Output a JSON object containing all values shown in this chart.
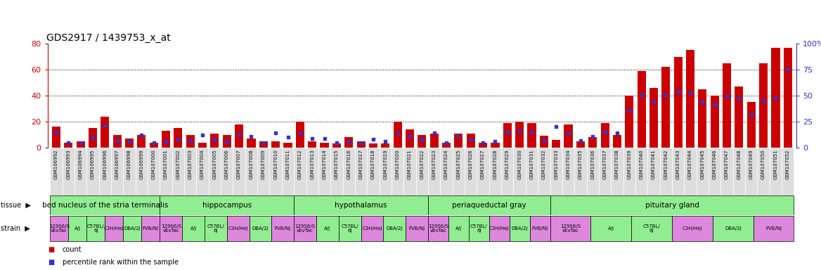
{
  "title": "GDS2917 / 1439753_x_at",
  "left_ylim": [
    0,
    80
  ],
  "right_ylim": [
    0,
    100
  ],
  "left_yticks": [
    0,
    20,
    40,
    60,
    80
  ],
  "right_yticks": [
    0,
    25,
    50,
    75,
    100
  ],
  "right_yticklabels": [
    "0",
    "25",
    "50",
    "75",
    "100%"
  ],
  "bar_color": "#cc0000",
  "dot_color": "#3333cc",
  "samples": [
    "GSM106992",
    "GSM106993",
    "GSM106994",
    "GSM106995",
    "GSM106996",
    "GSM106997",
    "GSM106998",
    "GSM106999",
    "GSM107000",
    "GSM107001",
    "GSM107002",
    "GSM107003",
    "GSM107004",
    "GSM107005",
    "GSM107006",
    "GSM107007",
    "GSM107008",
    "GSM107009",
    "GSM107010",
    "GSM107011",
    "GSM107012",
    "GSM107013",
    "GSM107014",
    "GSM107015",
    "GSM107016",
    "GSM107017",
    "GSM107018",
    "GSM107019",
    "GSM107020",
    "GSM107021",
    "GSM107022",
    "GSM107023",
    "GSM107024",
    "GSM107025",
    "GSM107026",
    "GSM107027",
    "GSM107028",
    "GSM107029",
    "GSM107030",
    "GSM107031",
    "GSM107032",
    "GSM107033",
    "GSM107034",
    "GSM107035",
    "GSM107036",
    "GSM107037",
    "GSM107038",
    "GSM107039",
    "GSM107040",
    "GSM107041",
    "GSM107042",
    "GSM107043",
    "GSM107044",
    "GSM107045",
    "GSM107046",
    "GSM107047",
    "GSM107048",
    "GSM107049",
    "GSM107050",
    "GSM107051",
    "GSM107052"
  ],
  "counts": [
    16,
    4,
    5,
    15,
    24,
    10,
    7,
    10,
    4,
    13,
    15,
    10,
    4,
    11,
    10,
    18,
    7,
    5,
    5,
    4,
    20,
    5,
    4,
    3,
    8,
    5,
    3,
    3,
    20,
    14,
    10,
    11,
    4,
    11,
    11,
    4,
    4,
    19,
    20,
    19,
    9,
    6,
    18,
    5,
    8,
    19,
    10,
    40,
    59,
    46,
    62,
    70,
    75,
    45,
    40,
    65,
    47,
    35,
    65,
    77,
    77
  ],
  "percentiles": [
    15,
    5,
    5,
    10,
    21,
    7,
    6,
    12,
    5,
    6,
    8,
    7,
    12,
    8,
    6,
    13,
    11,
    5,
    14,
    10,
    14,
    9,
    9,
    5,
    6,
    5,
    8,
    6,
    14,
    11,
    8,
    14,
    5,
    11,
    8,
    5,
    6,
    15,
    16,
    15,
    7,
    20,
    14,
    7,
    11,
    15,
    14,
    36,
    51,
    44,
    51,
    54,
    53,
    44,
    41,
    49,
    47,
    32,
    45,
    47,
    76
  ],
  "tissue_labels": [
    "bed nucleus of the stria terminalis",
    "hippocampus",
    "hypothalamus",
    "periaqueductal gray",
    "pituitary gland"
  ],
  "tissue_boundaries": [
    0,
    9,
    20,
    31,
    41,
    61
  ],
  "tissue_color": "#90ee90",
  "strain_labels": [
    "129S6/S\nvEvTac",
    "A/J",
    "C57BL/\n6J",
    "C3H/HeJ",
    "DBA/2J",
    "FVB/NJ"
  ],
  "strain_colors": [
    "#dd88dd",
    "#90ee90",
    "#90ee90",
    "#dd88dd",
    "#90ee90",
    "#dd88dd"
  ],
  "strain_color_green": "#90ee90",
  "strain_color_pink": "#dd88dd"
}
